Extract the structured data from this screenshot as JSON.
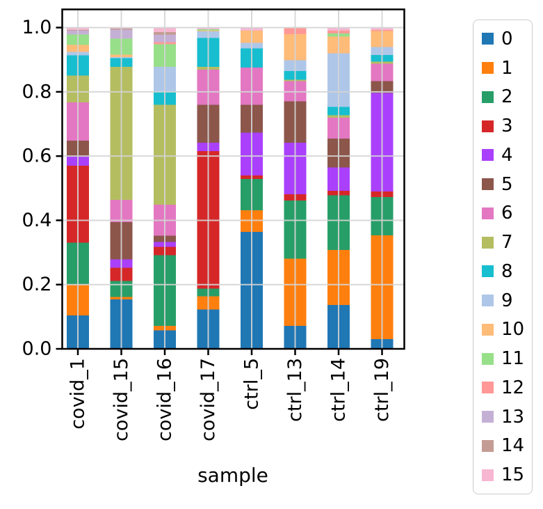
{
  "chart_data": {
    "type": "bar",
    "subtype": "stacked-normalized",
    "title": "",
    "xlabel": "sample",
    "ylabel": "",
    "ylim": [
      0.0,
      1.0
    ],
    "grid": true,
    "legend_position": "right-outside",
    "categories": [
      "covid_1",
      "covid_15",
      "covid_16",
      "covid_17",
      "ctrl_5",
      "ctrl_13",
      "ctrl_14",
      "ctrl_19"
    ],
    "yticks": [
      0.0,
      0.2,
      0.4,
      0.6,
      0.8,
      1.0
    ],
    "ytick_labels": [
      "0.0",
      "0.2",
      "0.4",
      "0.6",
      "0.8",
      "1.0"
    ],
    "series": [
      {
        "name": "0",
        "color": "#1f77b4",
        "values": [
          0.104,
          0.154,
          0.057,
          0.122,
          0.364,
          0.072,
          0.136,
          0.03
        ]
      },
      {
        "name": "1",
        "color": "#ff7f0e",
        "values": [
          0.096,
          0.007,
          0.015,
          0.042,
          0.067,
          0.209,
          0.172,
          0.323
        ]
      },
      {
        "name": "2",
        "color": "#279e68",
        "values": [
          0.13,
          0.05,
          0.22,
          0.024,
          0.098,
          0.181,
          0.17,
          0.12
        ]
      },
      {
        "name": "3",
        "color": "#d62728",
        "values": [
          0.24,
          0.042,
          0.025,
          0.428,
          0.011,
          0.019,
          0.014,
          0.017
        ]
      },
      {
        "name": "4",
        "color": "#aa40fc",
        "values": [
          0.028,
          0.025,
          0.016,
          0.025,
          0.133,
          0.16,
          0.073,
          0.306
        ]
      },
      {
        "name": "5",
        "color": "#8c564b",
        "values": [
          0.05,
          0.116,
          0.019,
          0.119,
          0.087,
          0.13,
          0.09,
          0.037
        ]
      },
      {
        "name": "6",
        "color": "#e377c2",
        "values": [
          0.119,
          0.07,
          0.097,
          0.109,
          0.116,
          0.062,
          0.065,
          0.054
        ]
      },
      {
        "name": "7",
        "color": "#b5bd61",
        "values": [
          0.084,
          0.414,
          0.311,
          0.009,
          0.0,
          0.005,
          0.007,
          0.007
        ]
      },
      {
        "name": "8",
        "color": "#17becf",
        "values": [
          0.062,
          0.027,
          0.041,
          0.09,
          0.059,
          0.027,
          0.026,
          0.021
        ]
      },
      {
        "name": "9",
        "color": "#aec7e8",
        "values": [
          0.011,
          0.003,
          0.077,
          0.02,
          0.018,
          0.033,
          0.167,
          0.025
        ]
      },
      {
        "name": "10",
        "color": "#ffbb78",
        "values": [
          0.022,
          0.008,
          0.0,
          0.002,
          0.037,
          0.082,
          0.052,
          0.049
        ]
      },
      {
        "name": "11",
        "color": "#98df8a",
        "values": [
          0.033,
          0.05,
          0.07,
          0.005,
          0.0,
          0.0,
          0.01,
          0.0
        ]
      },
      {
        "name": "12",
        "color": "#ff9896",
        "values": [
          0.0,
          0.0,
          0.007,
          0.0,
          0.0,
          0.02,
          0.009,
          0.004
        ]
      },
      {
        "name": "13",
        "color": "#c5b0d5",
        "values": [
          0.011,
          0.028,
          0.022,
          0.0,
          0.0,
          0.0,
          0.0,
          0.0
        ]
      },
      {
        "name": "14",
        "color": "#c49c94",
        "values": [
          0.003,
          0.003,
          0.009,
          0.0,
          0.0,
          0.0,
          0.0,
          0.0
        ]
      },
      {
        "name": "15",
        "color": "#f7b6d2",
        "values": [
          0.007,
          0.003,
          0.014,
          0.005,
          0.01,
          0.0,
          0.009,
          0.007
        ]
      }
    ]
  },
  "style_colors": {
    "frame": "#000000",
    "gridline": "#d4d4d4",
    "tick": "#000000",
    "legend_border": "#cccccc"
  }
}
